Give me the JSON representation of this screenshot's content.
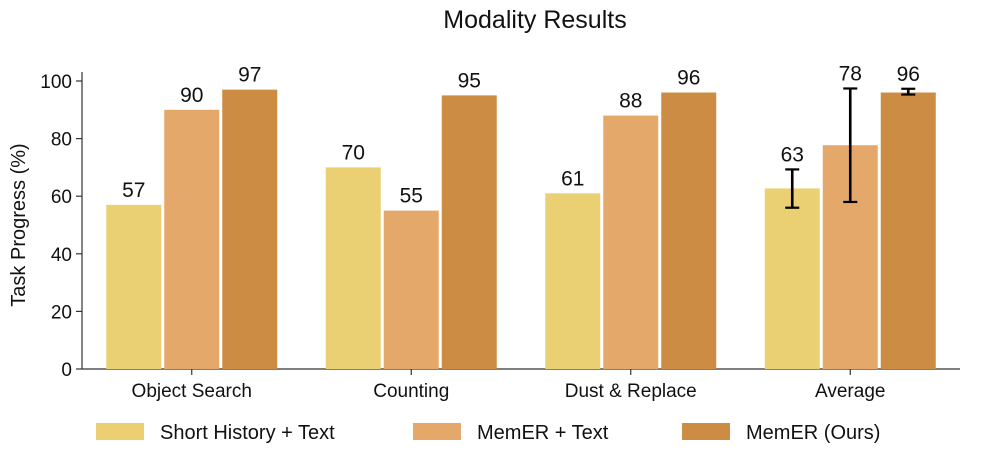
{
  "chart_data": {
    "type": "bar",
    "title": "Modality Results",
    "xlabel": "",
    "ylabel": "Task Progress (%)",
    "ylim": [
      0,
      100
    ],
    "yticks": [
      0,
      20,
      40,
      60,
      80,
      100
    ],
    "categories": [
      "Object Search",
      "Counting",
      "Dust & Replace",
      "Average"
    ],
    "series": [
      {
        "name": "Short History + Text",
        "values": [
          57,
          70,
          61,
          62.7
        ],
        "value_labels": [
          "57",
          "70",
          "61",
          "63"
        ],
        "error_low": [
          null,
          null,
          null,
          56
        ],
        "error_high": [
          null,
          null,
          null,
          69.3
        ]
      },
      {
        "name": "MemER + Text",
        "values": [
          90,
          55,
          88,
          77.7
        ],
        "value_labels": [
          "90",
          "55",
          "88",
          "78"
        ],
        "error_low": [
          null,
          null,
          null,
          58
        ],
        "error_high": [
          null,
          null,
          null,
          97.4
        ]
      },
      {
        "name": "MemER (Ours)",
        "values": [
          97,
          95,
          96,
          96
        ],
        "value_labels": [
          "97",
          "95",
          "96",
          "96"
        ],
        "error_low": [
          null,
          null,
          null,
          95.3
        ],
        "error_high": [
          null,
          null,
          null,
          97.3
        ]
      }
    ],
    "colors": [
      "#ebcf73",
      "#e4a86a",
      "#cc8c44"
    ],
    "grid": false,
    "legend_position": "bottom"
  }
}
